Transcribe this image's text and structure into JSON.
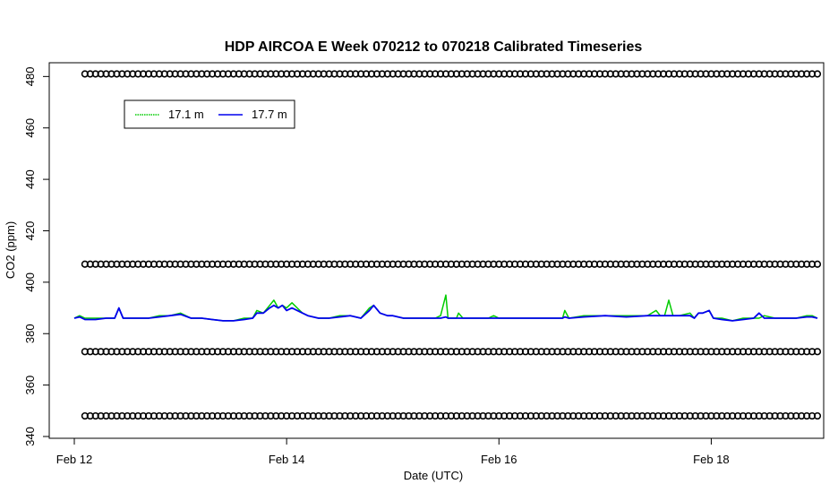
{
  "chart_data": {
    "type": "line",
    "title": "HDP AIRCOA E  Week 070212 to 070218  Calibrated Timeseries",
    "xlabel": "Date (UTC)",
    "ylabel": "CO2 (ppm)",
    "x_tick_labels": [
      "Feb 12",
      "Feb 14",
      "Feb 16",
      "Feb 18"
    ],
    "x_tick_days": [
      12,
      14,
      16,
      18
    ],
    "xlim_days": [
      12.0,
      19.0
    ],
    "yticks": [
      340,
      360,
      380,
      400,
      420,
      440,
      460,
      480
    ],
    "ylim": [
      340,
      485
    ],
    "grid": false,
    "legend_position": "top-left",
    "series": [
      {
        "name": "17.1 m",
        "color": "#00cc00",
        "x_days": [
          12.0,
          12.05,
          12.1,
          12.2,
          12.3,
          12.38,
          12.42,
          12.46,
          12.5,
          12.55,
          12.6,
          12.7,
          12.8,
          12.9,
          13.0,
          13.1,
          13.2,
          13.3,
          13.4,
          13.5,
          13.6,
          13.68,
          13.72,
          13.78,
          13.84,
          13.88,
          13.92,
          13.96,
          14.0,
          14.05,
          14.1,
          14.15,
          14.2,
          14.3,
          14.4,
          14.5,
          14.6,
          14.7,
          14.78,
          14.82,
          14.88,
          14.95,
          15.0,
          15.1,
          15.2,
          15.3,
          15.4,
          15.45,
          15.5,
          15.52,
          15.56,
          15.6,
          15.62,
          15.66,
          15.7,
          15.8,
          15.9,
          15.95,
          16.0,
          16.2,
          16.4,
          16.5,
          16.6,
          16.62,
          16.66,
          16.8,
          17.0,
          17.2,
          17.4,
          17.48,
          17.52,
          17.56,
          17.6,
          17.64,
          17.7,
          17.8,
          17.84,
          17.88,
          17.92,
          17.98,
          18.02,
          18.1,
          18.2,
          18.3,
          18.4,
          18.45,
          18.5,
          18.6,
          18.7,
          18.8,
          18.9,
          18.95,
          19.0
        ],
        "values": [
          386,
          387,
          386,
          386,
          386,
          386,
          390,
          386,
          386,
          386,
          386,
          386,
          387,
          387,
          388,
          386,
          386,
          385.5,
          385,
          385,
          386,
          386,
          389,
          388,
          391,
          393,
          390,
          391,
          390,
          392,
          390,
          388,
          387,
          386,
          386,
          387,
          387,
          386,
          390,
          391,
          388,
          387,
          387,
          386,
          386,
          386,
          386,
          387,
          395,
          386,
          386,
          386,
          388,
          386,
          386,
          386,
          386,
          387,
          386,
          386,
          386,
          386,
          386,
          389,
          386,
          387,
          387,
          387,
          387,
          389,
          387,
          387,
          393,
          387,
          387,
          388,
          386,
          388,
          388,
          389,
          386,
          386,
          385,
          386,
          386,
          386,
          387,
          386,
          386,
          386,
          387,
          387,
          386
        ]
      },
      {
        "name": "17.7 m",
        "color": "#0000ee",
        "x_days": [
          12.0,
          12.05,
          12.1,
          12.2,
          12.3,
          12.38,
          12.42,
          12.46,
          12.5,
          12.55,
          12.6,
          12.7,
          12.8,
          12.9,
          13.0,
          13.1,
          13.2,
          13.3,
          13.4,
          13.5,
          13.6,
          13.68,
          13.72,
          13.78,
          13.84,
          13.88,
          13.92,
          13.96,
          14.0,
          14.05,
          14.1,
          14.15,
          14.2,
          14.3,
          14.4,
          14.5,
          14.6,
          14.7,
          14.78,
          14.82,
          14.88,
          14.95,
          15.0,
          15.1,
          15.2,
          15.3,
          15.4,
          15.45,
          15.5,
          15.52,
          15.56,
          15.6,
          15.62,
          15.66,
          15.7,
          15.8,
          15.9,
          15.95,
          16.0,
          16.2,
          16.4,
          16.5,
          16.6,
          16.62,
          16.66,
          16.8,
          17.0,
          17.2,
          17.4,
          17.48,
          17.52,
          17.56,
          17.6,
          17.64,
          17.7,
          17.8,
          17.84,
          17.88,
          17.92,
          17.98,
          18.02,
          18.1,
          18.2,
          18.3,
          18.4,
          18.45,
          18.5,
          18.6,
          18.7,
          18.8,
          18.9,
          18.95,
          19.0
        ],
        "values": [
          386,
          386.5,
          385.5,
          385.5,
          386,
          386,
          390,
          386,
          386,
          386,
          386,
          386,
          386.5,
          387,
          387.5,
          386,
          386,
          385.5,
          385,
          385,
          385.5,
          386,
          388,
          388,
          390,
          391,
          390,
          391,
          389,
          390,
          389,
          388,
          387,
          386,
          386,
          386.5,
          387,
          386,
          389,
          391,
          388,
          387,
          387,
          386,
          386,
          386,
          386,
          386,
          386.5,
          386,
          386,
          386,
          386,
          386,
          386,
          386,
          386,
          386,
          386,
          386,
          386,
          386,
          386,
          386.5,
          386,
          386.5,
          387,
          386.5,
          387,
          387,
          387,
          387,
          387,
          387,
          387,
          387,
          386,
          388,
          388,
          389,
          386,
          385.5,
          385,
          385.5,
          386,
          388,
          386,
          386,
          386,
          386,
          386.5,
          386.5,
          386
        ]
      }
    ],
    "calibration_marker_levels": [
      481,
      407,
      373,
      348
    ],
    "calibration_marker_range_days": [
      12.1,
      19.0
    ]
  }
}
